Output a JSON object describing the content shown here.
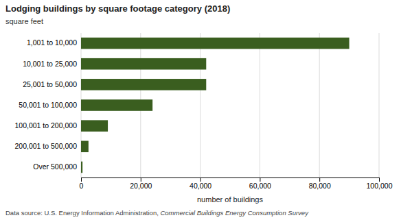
{
  "chart_data": {
    "type": "bar",
    "orientation": "horizontal",
    "title": "Lodging buildings by square footage category (2018)",
    "subtitle": "square feet",
    "xlabel": "number of buildings",
    "categories": [
      "Over 500,000",
      "200,001 to 500,000",
      "100,001 to 200,000",
      "50,001 to 100,000",
      "25,001 to 50,000",
      "10,001 to 25,000",
      "1,001 to 10,000"
    ],
    "values": [
      500,
      2500,
      9000,
      24000,
      42000,
      42000,
      90000
    ],
    "color": "#3a5e1f",
    "xlim": [
      0,
      100000
    ],
    "xticks": [
      0,
      {
        "value": 20000,
        "label": "20,000"
      },
      {
        "value": 40000,
        "label": "40,000"
      },
      {
        "value": 60000,
        "label": "60,000"
      },
      {
        "value": 80000,
        "label": "80,000"
      },
      {
        "value": 100000,
        "label": "100,000"
      }
    ],
    "grid": true,
    "annotations": [
      "Data source: U.S. Energy Information Administration, ",
      "Commercial Buildings Energy Consumption Survey"
    ]
  }
}
